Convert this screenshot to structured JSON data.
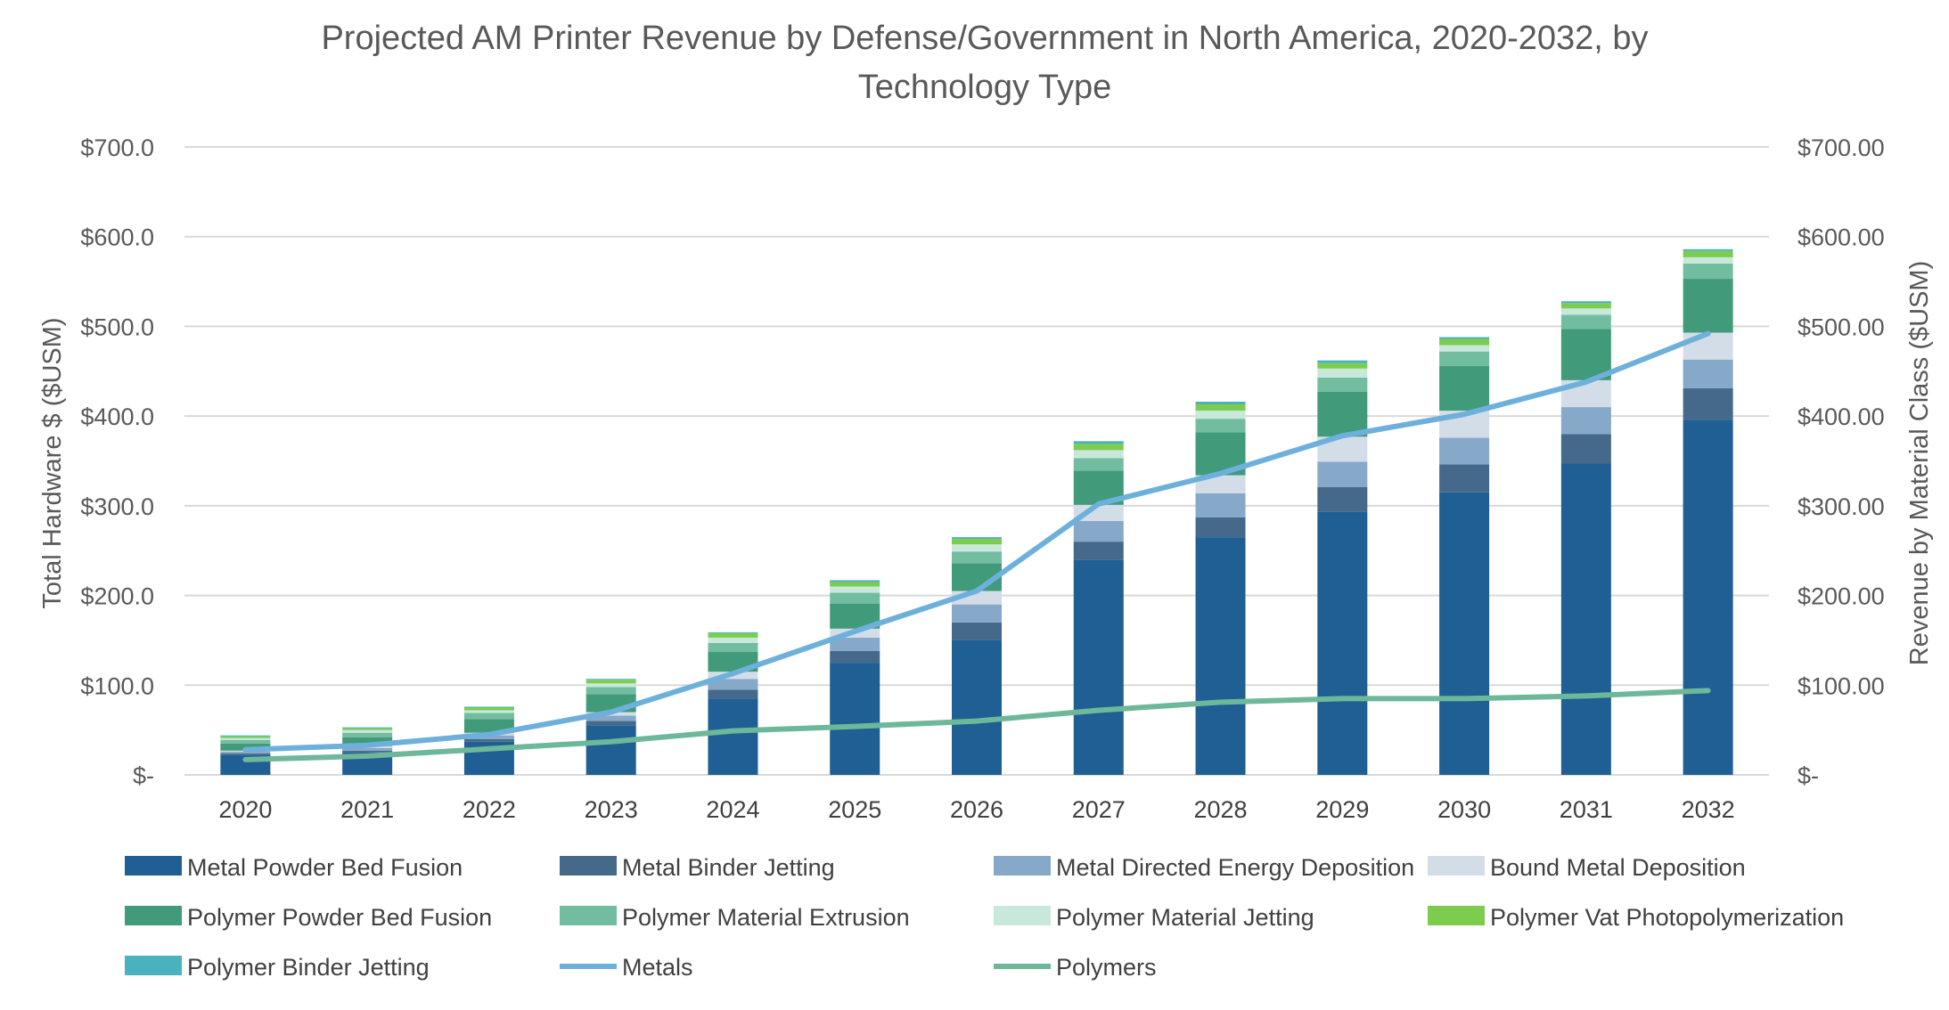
{
  "chart_data": {
    "type": "bar",
    "title": "Projected AM Printer Revenue by Defense/Government in North America, 2020-2032, by Technology Type",
    "title_lines": [
      "Projected AM Printer Revenue by Defense/Government in North America, 2020-2032, by",
      "Technology Type"
    ],
    "ylabel": "Total Hardware $ ($USM)",
    "y2label": "Revenue by Material Class ($USM)",
    "ylim": [
      0,
      700
    ],
    "y2lim": [
      0,
      700
    ],
    "yticks": [
      "$-",
      "$100.0",
      "$200.0",
      "$300.0",
      "$400.0",
      "$500.0",
      "$600.0",
      "$700.0"
    ],
    "y2ticks": [
      "$-",
      "$100.00",
      "$200.00",
      "$300.00",
      "$400.00",
      "$500.00",
      "$600.00",
      "$700.00"
    ],
    "grid": true,
    "stacked": true,
    "legend_position": "bottom",
    "categories": [
      "2020",
      "2021",
      "2022",
      "2023",
      "2024",
      "2025",
      "2026",
      "2027",
      "2028",
      "2029",
      "2030",
      "2031",
      "2032"
    ],
    "series": [
      {
        "name": "Metal Powder Bed Fusion",
        "color": "#1f5f93",
        "values": [
          22,
          25,
          37,
          55,
          85,
          125,
          150,
          240,
          265,
          293,
          315,
          347,
          396
        ]
      },
      {
        "name": "Metal Binder Jetting",
        "color": "#44698b",
        "values": [
          2,
          2,
          3,
          5,
          10,
          13,
          20,
          20,
          22,
          28,
          31,
          33,
          35
        ]
      },
      {
        "name": "Metal Directed Energy Deposition",
        "color": "#86a9c9",
        "values": [
          2,
          3,
          4,
          6,
          12,
          15,
          20,
          23,
          27,
          28,
          30,
          30,
          32
        ]
      },
      {
        "name": "Bound Metal Deposition",
        "color": "#d3dde8",
        "values": [
          1,
          2,
          3,
          4,
          8,
          10,
          15,
          18,
          20,
          28,
          30,
          30,
          30
        ]
      },
      {
        "name": "Polymer Powder Bed Fusion",
        "color": "#419a79",
        "values": [
          8,
          10,
          15,
          20,
          22,
          28,
          31,
          38,
          48,
          50,
          50,
          57,
          60
        ]
      },
      {
        "name": "Polymer Material Extrusion",
        "color": "#72bd9f",
        "values": [
          4,
          5,
          7,
          8,
          10,
          12,
          13,
          14,
          15,
          16,
          16,
          16,
          17
        ]
      },
      {
        "name": "Polymer Material Jetting",
        "color": "#c9e8dc",
        "values": [
          2,
          3,
          3,
          4,
          6,
          7,
          8,
          9,
          9,
          10,
          7,
          7,
          7
        ]
      },
      {
        "name": "Polymer Vat Photopolymerization",
        "color": "#7ccc4e",
        "values": [
          2,
          2,
          3,
          4,
          5,
          5,
          6,
          7,
          7,
          6,
          7,
          6,
          7
        ]
      },
      {
        "name": "Polymer Binder Jetting",
        "color": "#4ab2bd",
        "values": [
          1,
          1,
          1,
          1,
          1,
          2,
          2,
          3,
          3,
          3,
          2,
          2,
          2
        ]
      }
    ],
    "line_series": [
      {
        "name": "Metals",
        "color": "#6eb0dc",
        "values": [
          28,
          33,
          45,
          70,
          113,
          160,
          205,
          302,
          336,
          378,
          402,
          438,
          492
        ]
      },
      {
        "name": "Polymers",
        "color": "#6db89a",
        "values": [
          17,
          21,
          29,
          37,
          49,
          54,
          60,
          72,
          81,
          85,
          85,
          88,
          94
        ]
      }
    ],
    "legend": [
      "Metal Powder Bed Fusion",
      "Metal Binder Jetting",
      "Metal Directed Energy Deposition",
      "Bound Metal Deposition",
      "Polymer Powder Bed Fusion",
      "Polymer Material Extrusion",
      "Polymer Material Jetting",
      "Polymer Vat Photopolymerization",
      "Polymer Binder Jetting",
      "Metals",
      "Polymers"
    ]
  }
}
